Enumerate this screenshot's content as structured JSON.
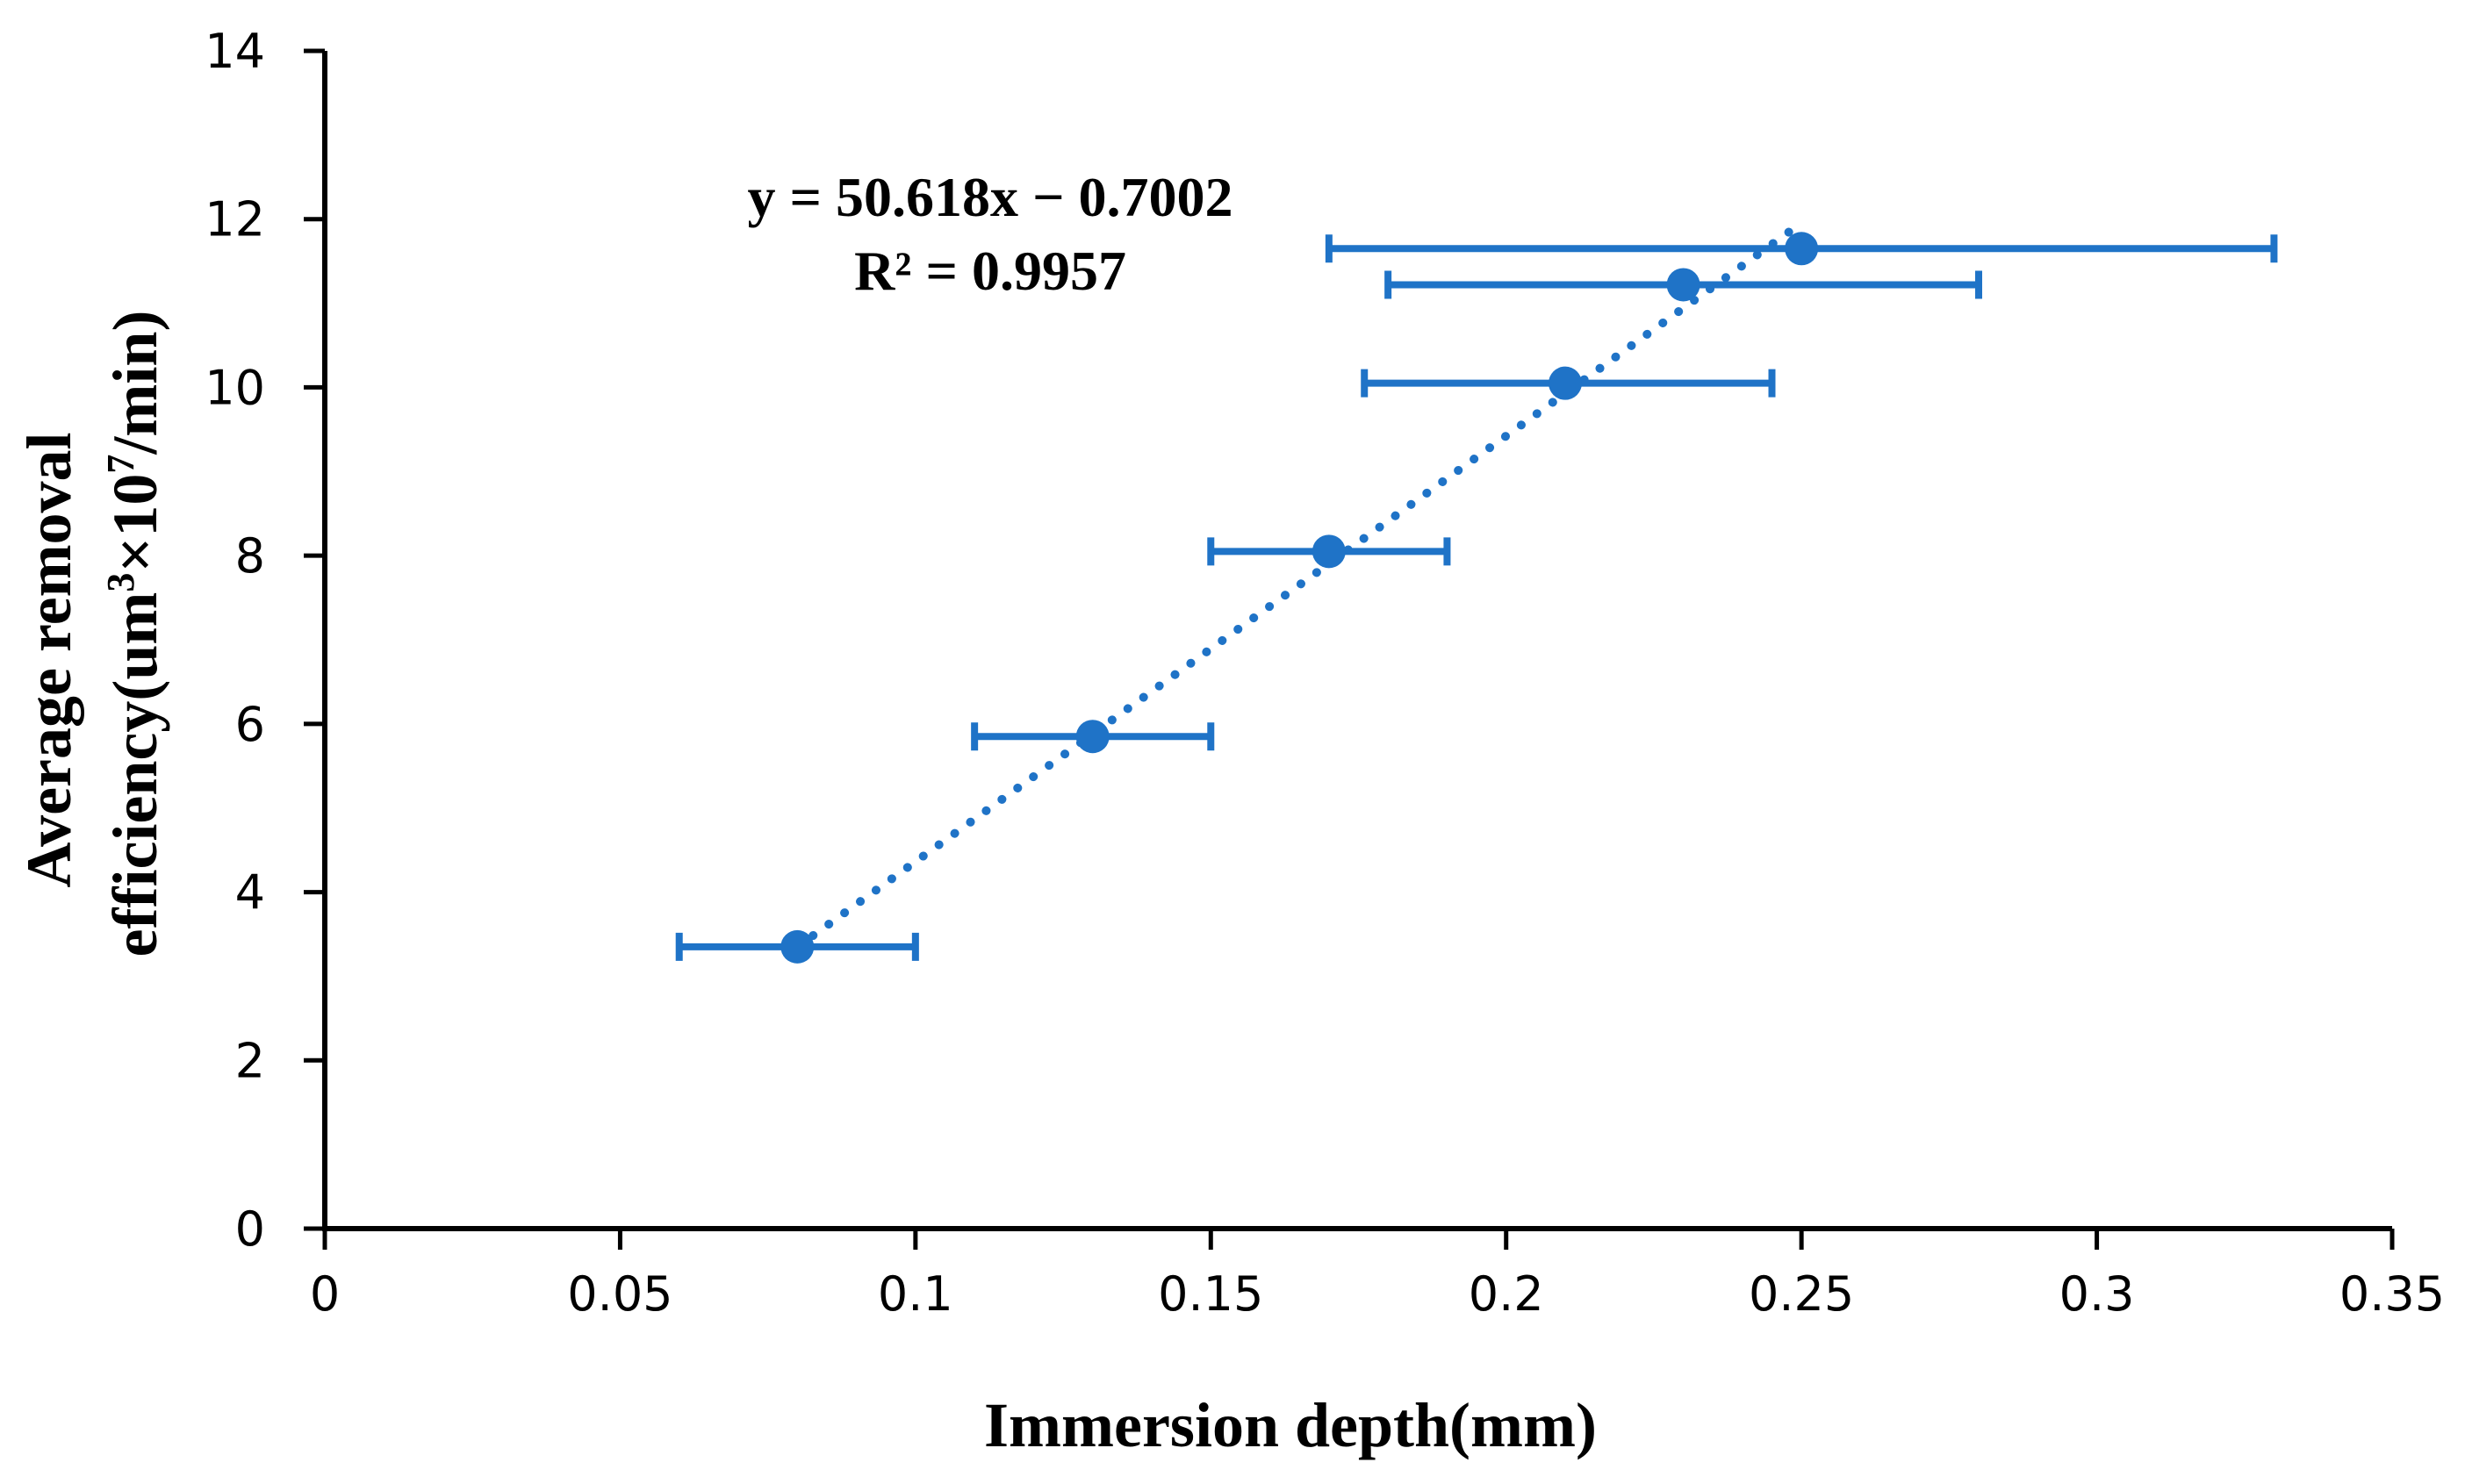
{
  "chart_data": {
    "type": "scatter",
    "title": "",
    "xlabel": "Immersion depth(mm)",
    "ylabel_line1": "Average removal",
    "ylabel_line2_prefix": "efficiency(um",
    "ylabel_sup1": "3",
    "ylabel_mid": "×10",
    "ylabel_sup2": "7",
    "ylabel_suffix": "/min)",
    "xlim": [
      0,
      0.35
    ],
    "ylim": [
      0,
      14
    ],
    "x_ticks": [
      "0",
      "0.05",
      "0.1",
      "0.15",
      "0.2",
      "0.25",
      "0.3",
      "0.35"
    ],
    "y_ticks": [
      "0",
      "2",
      "4",
      "6",
      "8",
      "10",
      "12",
      "14"
    ],
    "grid": false,
    "series": [
      {
        "name": "Average removal efficiency",
        "color": "#1F73C7",
        "points": [
          {
            "x": 0.08,
            "y": 3.35,
            "xerr_low": 0.06,
            "xerr_high": 0.1
          },
          {
            "x": 0.13,
            "y": 5.85,
            "xerr_low": 0.11,
            "xerr_high": 0.15
          },
          {
            "x": 0.17,
            "y": 8.05,
            "xerr_low": 0.15,
            "xerr_high": 0.19
          },
          {
            "x": 0.21,
            "y": 10.05,
            "xerr_low": 0.176,
            "xerr_high": 0.245
          },
          {
            "x": 0.23,
            "y": 11.22,
            "xerr_low": 0.18,
            "xerr_high": 0.28
          },
          {
            "x": 0.25,
            "y": 11.65,
            "xerr_low": 0.17,
            "xerr_high": 0.33
          }
        ]
      }
    ],
    "trendline": {
      "type": "linear",
      "slope": 50.618,
      "intercept": -0.7002,
      "x_start": 0.08,
      "x_end": 0.25,
      "color": "#1F73C7",
      "style": "dotted"
    },
    "annotations": {
      "equation": "y = 50.618x − 0.7002",
      "r_squared": "R² = 0.9957"
    }
  }
}
